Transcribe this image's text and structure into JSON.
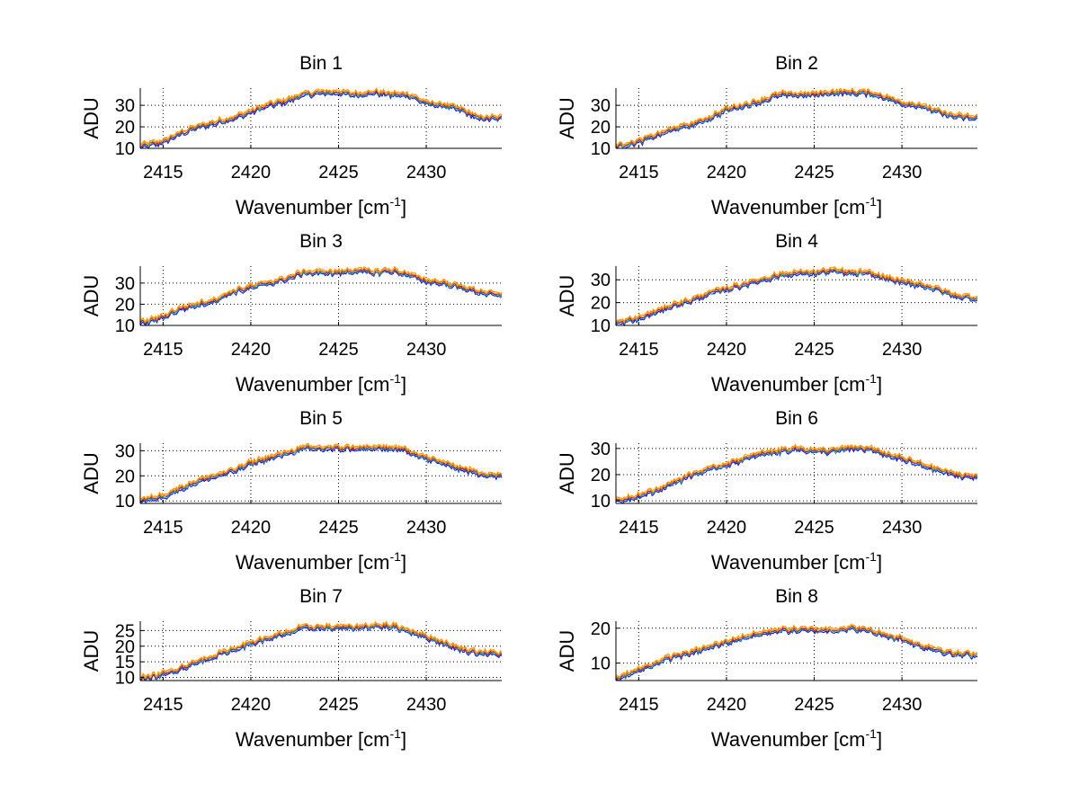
{
  "colors": {
    "background": "#ffffff",
    "axes": "#000000",
    "grid": "#000000",
    "series_1": "#0000ff",
    "series_2": "#00bfbf",
    "series_3": "#ff8c00",
    "series_4": "#d4a017",
    "series_5": "#cc0000"
  },
  "chart_data": [
    {
      "type": "line",
      "title": "Bin 1",
      "xlabel": "Wavenumber [cm",
      "xlabel_sup": "-1",
      "xlabel_close": "]",
      "ylabel": "ADU",
      "xlim": [
        2413.7,
        2434.3
      ],
      "ylim": [
        10,
        38
      ],
      "xticks": [
        2415,
        2420,
        2425,
        2430
      ],
      "yticks": [
        10,
        20,
        30
      ],
      "grid": true,
      "x": [
        2413.7,
        2415,
        2416,
        2417,
        2418,
        2419,
        2420,
        2421,
        2422,
        2423,
        2424,
        2425,
        2426,
        2427,
        2428,
        2429,
        2430,
        2431,
        2432,
        2433,
        2434.3
      ],
      "values": [
        11,
        13,
        17,
        20,
        22,
        24,
        27,
        30,
        32,
        35,
        36,
        36,
        35,
        36,
        35,
        35,
        31,
        30,
        28,
        24,
        24
      ]
    },
    {
      "type": "line",
      "title": "Bin 2",
      "xlabel": "Wavenumber [cm",
      "xlabel_sup": "-1",
      "xlabel_close": "]",
      "ylabel": "ADU",
      "xlim": [
        2413.7,
        2434.3
      ],
      "ylim": [
        10,
        38
      ],
      "xticks": [
        2415,
        2420,
        2425,
        2430
      ],
      "yticks": [
        10,
        20,
        30
      ],
      "grid": true,
      "x": [
        2413.7,
        2415,
        2416,
        2417,
        2418,
        2419,
        2420,
        2421,
        2422,
        2423,
        2424,
        2425,
        2426,
        2427,
        2428,
        2429,
        2430,
        2431,
        2432,
        2433,
        2434.3
      ],
      "values": [
        11,
        13,
        16,
        19,
        21,
        24,
        28,
        30,
        32,
        35,
        35,
        35,
        36,
        36,
        36,
        34,
        31,
        30,
        27,
        25,
        24
      ]
    },
    {
      "type": "line",
      "title": "Bin 3",
      "xlabel": "Wavenumber [cm",
      "xlabel_sup": "-1",
      "xlabel_close": "]",
      "ylabel": "ADU",
      "xlim": [
        2413.7,
        2434.3
      ],
      "ylim": [
        10,
        38
      ],
      "xticks": [
        2415,
        2420,
        2425,
        2430
      ],
      "yticks": [
        10,
        20,
        30
      ],
      "grid": true,
      "x": [
        2413.7,
        2415,
        2416,
        2417,
        2418,
        2419,
        2420,
        2421,
        2422,
        2423,
        2424,
        2425,
        2426,
        2427,
        2428,
        2429,
        2430,
        2431,
        2432,
        2433,
        2434.3
      ],
      "values": [
        11,
        14,
        18,
        20,
        22,
        26,
        28,
        30,
        32,
        35,
        35,
        35,
        36,
        35,
        36,
        34,
        31,
        30,
        28,
        26,
        24
      ]
    },
    {
      "type": "line",
      "title": "Bin 4",
      "xlabel": "Wavenumber [cm",
      "xlabel_sup": "-1",
      "xlabel_close": "]",
      "ylabel": "ADU",
      "xlim": [
        2413.7,
        2434.3
      ],
      "ylim": [
        10,
        36
      ],
      "xticks": [
        2415,
        2420,
        2425,
        2430
      ],
      "yticks": [
        10,
        20,
        30
      ],
      "grid": true,
      "x": [
        2413.7,
        2415,
        2416,
        2417,
        2418,
        2419,
        2420,
        2421,
        2422,
        2423,
        2424,
        2425,
        2426,
        2427,
        2428,
        2429,
        2430,
        2431,
        2432,
        2433,
        2434.3
      ],
      "values": [
        11,
        13,
        16,
        19,
        21,
        24,
        26,
        28,
        30,
        32,
        33,
        33,
        34,
        33,
        33,
        31,
        29,
        28,
        26,
        23,
        22
      ]
    },
    {
      "type": "line",
      "title": "Bin 5",
      "xlabel": "Wavenumber [cm",
      "xlabel_sup": "-1",
      "xlabel_close": "]",
      "ylabel": "ADU",
      "xlim": [
        2413.7,
        2434.3
      ],
      "ylim": [
        9,
        33
      ],
      "xticks": [
        2415,
        2420,
        2425,
        2430
      ],
      "yticks": [
        10,
        20,
        30
      ],
      "grid": true,
      "x": [
        2413.7,
        2415,
        2416,
        2417,
        2418,
        2419,
        2420,
        2421,
        2422,
        2423,
        2424,
        2425,
        2426,
        2427,
        2428,
        2429,
        2430,
        2431,
        2432,
        2433,
        2434.3
      ],
      "values": [
        10,
        12,
        15,
        18,
        20,
        22,
        25,
        27,
        29,
        31,
        31,
        31,
        31,
        31,
        31,
        30,
        27,
        25,
        23,
        21,
        20
      ]
    },
    {
      "type": "line",
      "title": "Bin 6",
      "xlabel": "Wavenumber [cm",
      "xlabel_sup": "-1",
      "xlabel_close": "]",
      "ylabel": "ADU",
      "xlim": [
        2413.7,
        2434.3
      ],
      "ylim": [
        9,
        32
      ],
      "xticks": [
        2415,
        2420,
        2425,
        2430
      ],
      "yticks": [
        10,
        20,
        30
      ],
      "grid": true,
      "x": [
        2413.7,
        2415,
        2416,
        2417,
        2418,
        2419,
        2420,
        2421,
        2422,
        2423,
        2424,
        2425,
        2426,
        2427,
        2428,
        2429,
        2430,
        2431,
        2432,
        2433,
        2434.3
      ],
      "values": [
        10,
        12,
        14,
        17,
        20,
        22,
        24,
        26,
        28,
        29,
        30,
        29,
        29,
        30,
        30,
        28,
        26,
        24,
        22,
        20,
        19
      ]
    },
    {
      "type": "line",
      "title": "Bin 7",
      "xlabel": "Wavenumber [cm",
      "xlabel_sup": "-1",
      "xlabel_close": "]",
      "ylabel": "ADU",
      "xlim": [
        2413.7,
        2434.3
      ],
      "ylim": [
        9,
        28
      ],
      "xticks": [
        2415,
        2420,
        2425,
        2430
      ],
      "yticks": [
        10,
        15,
        20,
        25
      ],
      "grid": true,
      "x": [
        2413.7,
        2415,
        2416,
        2417,
        2418,
        2419,
        2420,
        2421,
        2422,
        2423,
        2424,
        2425,
        2426,
        2427,
        2428,
        2429,
        2430,
        2431,
        2432,
        2433,
        2434.3
      ],
      "values": [
        9.5,
        11,
        13,
        15,
        17,
        19,
        21,
        22.5,
        24,
        26,
        26,
        26,
        26,
        26.5,
        26.5,
        25,
        23,
        21,
        19,
        18,
        17.5
      ]
    },
    {
      "type": "line",
      "title": "Bin 8",
      "xlabel": "Wavenumber [cm",
      "xlabel_sup": "-1",
      "xlabel_close": "]",
      "ylabel": "ADU",
      "xlim": [
        2413.7,
        2434.3
      ],
      "ylim": [
        5,
        22
      ],
      "xticks": [
        2415,
        2420,
        2425,
        2430
      ],
      "yticks": [
        10,
        20
      ],
      "grid": true,
      "x": [
        2413.7,
        2415,
        2416,
        2417,
        2418,
        2419,
        2420,
        2421,
        2422,
        2423,
        2424,
        2425,
        2426,
        2427,
        2428,
        2429,
        2430,
        2431,
        2432,
        2433,
        2434.3
      ],
      "values": [
        5.5,
        8,
        10,
        12,
        13,
        14.5,
        16,
        17.5,
        18.5,
        19.5,
        19.5,
        19.5,
        19.5,
        20,
        19.5,
        18,
        17,
        15,
        14,
        12.5,
        12.5
      ]
    }
  ]
}
